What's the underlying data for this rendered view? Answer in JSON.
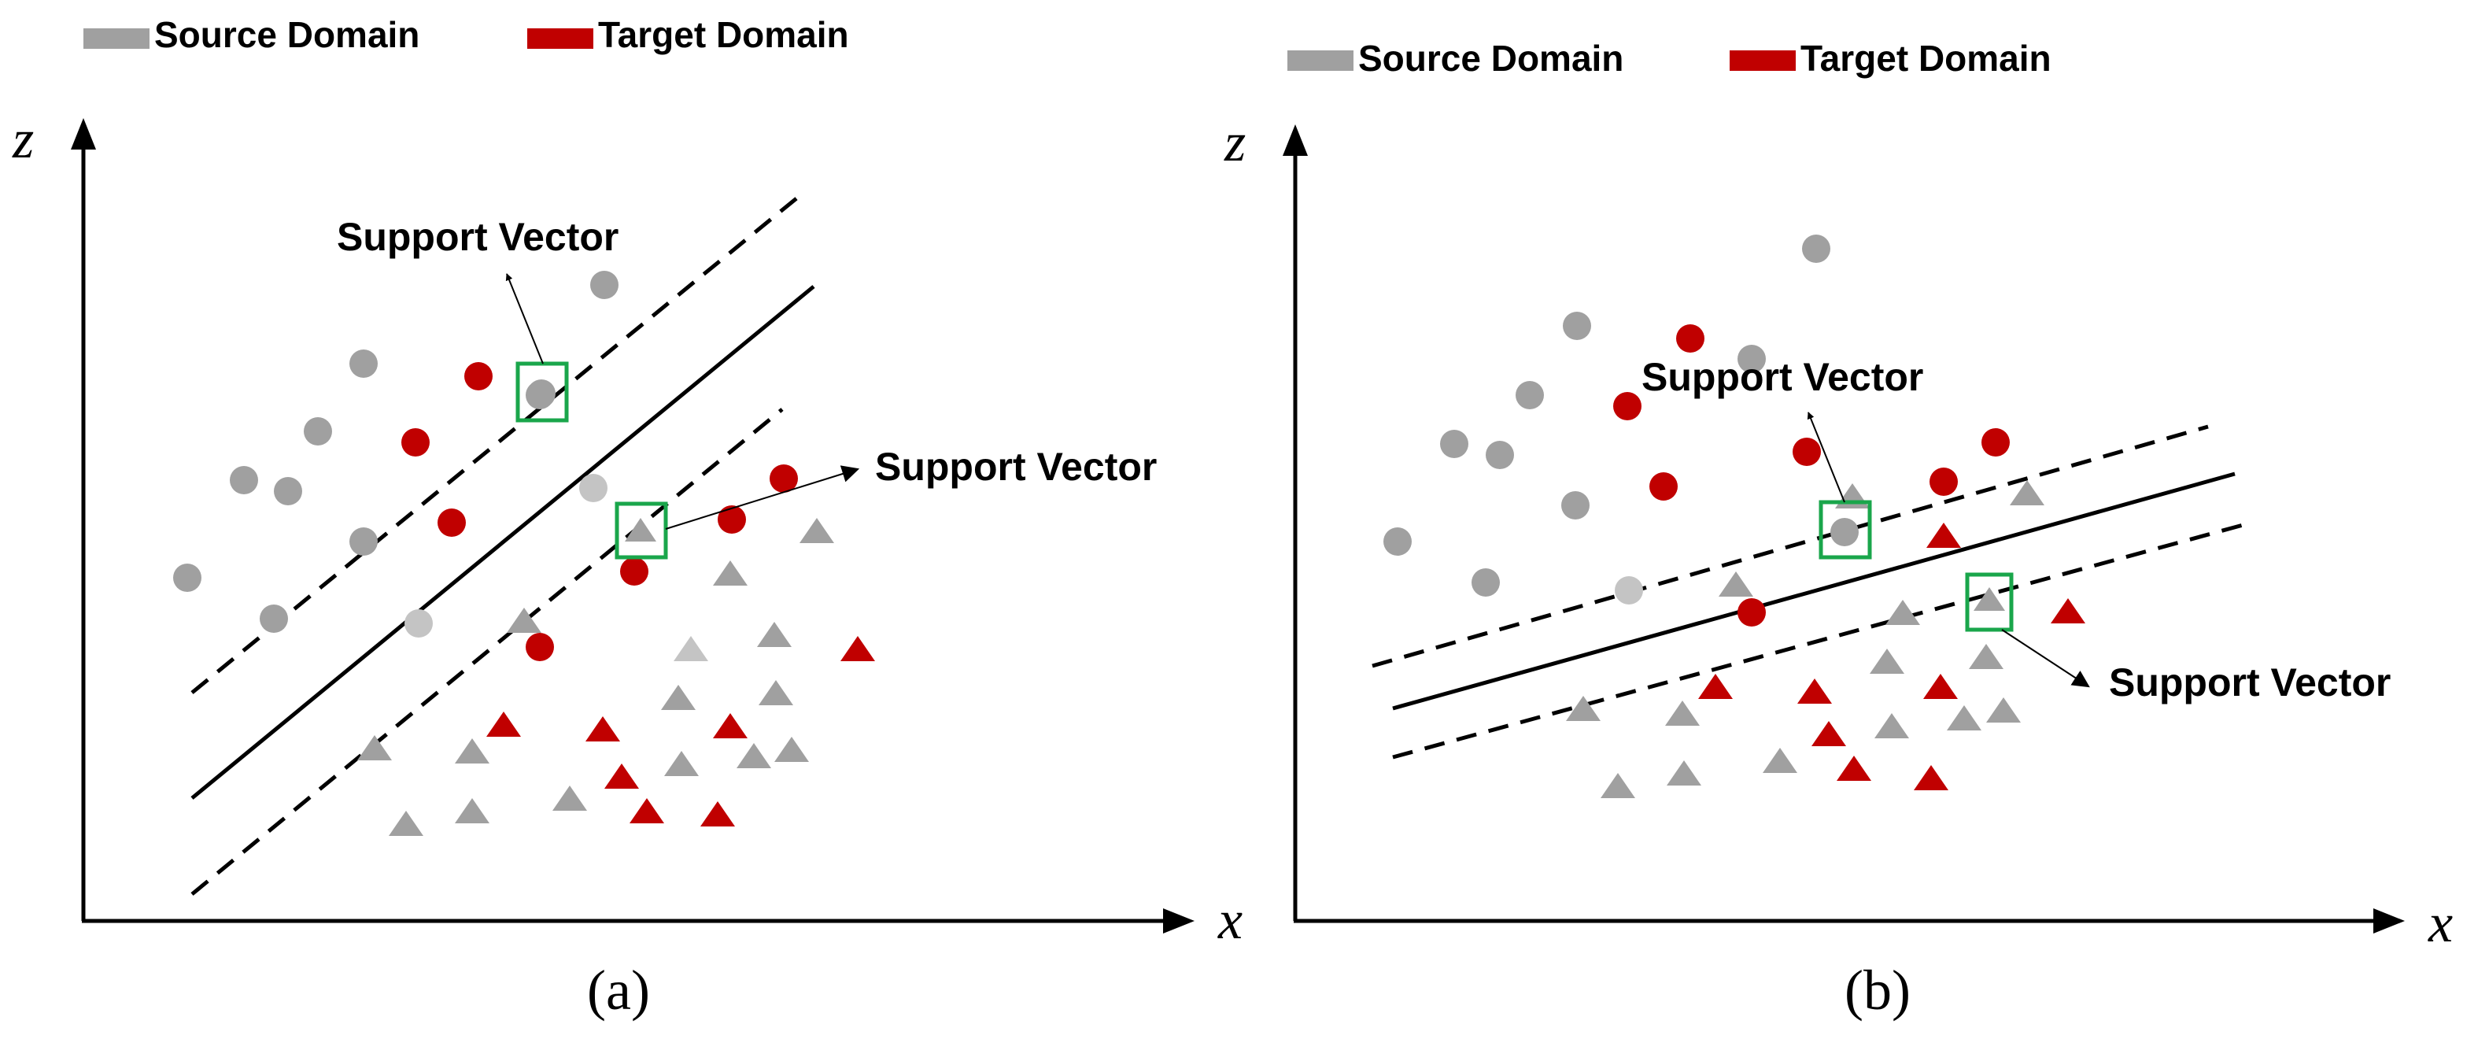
{
  "colors": {
    "source": "#a0a0a0",
    "source_light": "#c4c4c4",
    "target": "#c00000",
    "support_box": "#1aa64b",
    "axis": "#000000"
  },
  "panels": [
    {
      "id": "a",
      "caption": "(a)",
      "x_axis_label": "x",
      "z_axis_label": "z",
      "legend": [
        {
          "label": "Source Domain",
          "color": "#a0a0a0"
        },
        {
          "label": "Target Domain",
          "color": "#c00000"
        }
      ],
      "support_vector_labels": [
        "Support Vector",
        "Support Vector"
      ]
    },
    {
      "id": "b",
      "caption": "(b)",
      "x_axis_label": "x",
      "z_axis_label": "z",
      "legend": [
        {
          "label": "Source Domain",
          "color": "#a0a0a0"
        },
        {
          "label": "Target Domain",
          "color": "#c00000"
        }
      ],
      "support_vector_labels": [
        "Support Vector",
        "Support Vector"
      ]
    }
  ]
}
